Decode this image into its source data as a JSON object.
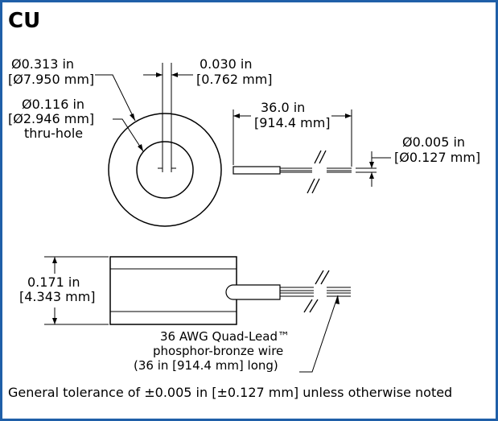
{
  "title": "CU",
  "top_view": {
    "od_in": "Ø0.313 in",
    "od_mm": "[Ø7.950 mm]",
    "hole_in": "Ø0.116 in",
    "hole_mm": "[Ø2.946 mm]",
    "hole_note": "thru-hole",
    "lead_spacing_in": "0.030 in",
    "lead_spacing_mm": "[0.762 mm]",
    "lead_length_in": "36.0 in",
    "lead_length_mm": "[914.4 mm]",
    "wire_dia_in": "Ø0.005 in",
    "wire_dia_mm": "[Ø0.127 mm]"
  },
  "side_view": {
    "height_in": "0.171 in",
    "height_mm": "[4.343 mm]",
    "wire_line1": "36 AWG Quad-Lead™",
    "wire_line2": "phosphor-bronze wire",
    "wire_line3": "(36 in [914.4 mm] long)"
  },
  "footer_note": "General tolerance of ±0.005 in [±0.127 mm] unless otherwise noted",
  "colors": {
    "frame": "#1f5fa8",
    "ink": "#000000"
  }
}
